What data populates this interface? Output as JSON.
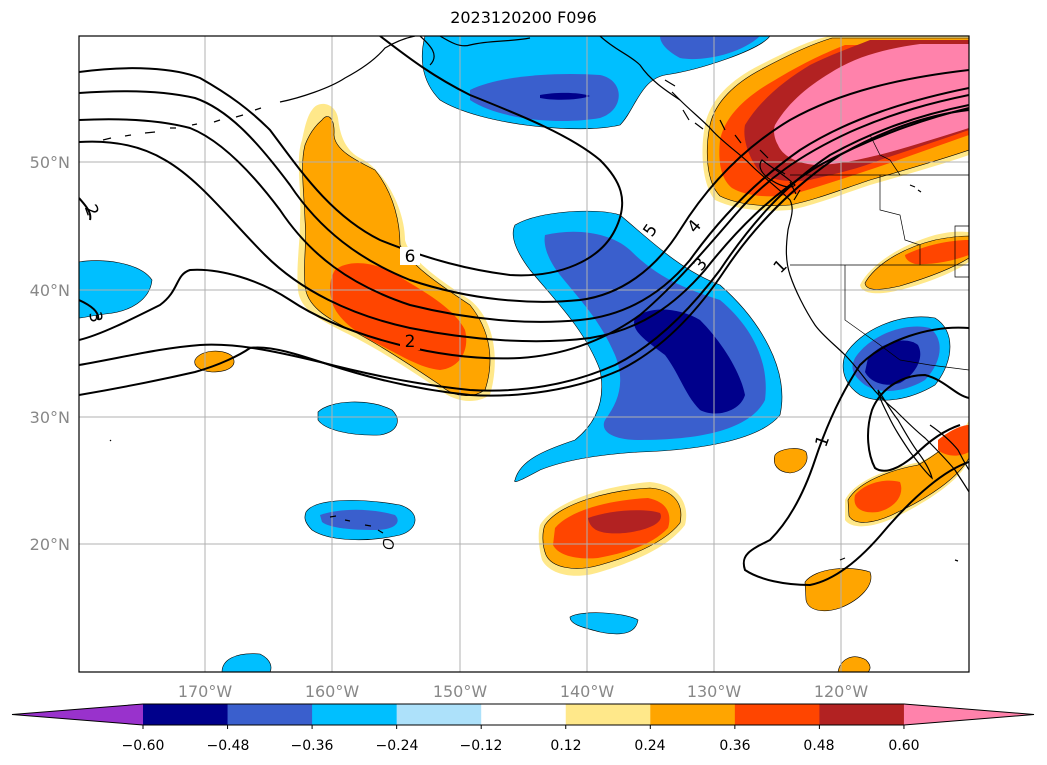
{
  "title": "2023120200 F096",
  "lat_labels": [
    "50°N",
    "40°N",
    "30°N",
    "20°N"
  ],
  "lon_labels": [
    "170°W",
    "160°W",
    "150°W",
    "140°W",
    "130°W",
    "120°W"
  ],
  "colorbar": {
    "ticks": [
      "−0.60",
      "−0.48",
      "−0.36",
      "−0.24",
      "−0.12",
      "0.12",
      "0.24",
      "0.36",
      "0.48",
      "0.60"
    ],
    "colors": [
      "#9932CC",
      "#00008B",
      "#3A5FCD",
      "#00BFFF",
      "#ADE1FA",
      "#FFFFFF",
      "#FFE88A",
      "#FFA500",
      "#FF4500",
      "#B22222",
      "#FF82AB"
    ]
  },
  "contour_labels": [
    "6",
    "2",
    "5",
    "4",
    "3",
    "1",
    "1",
    "2",
    "3"
  ]
}
